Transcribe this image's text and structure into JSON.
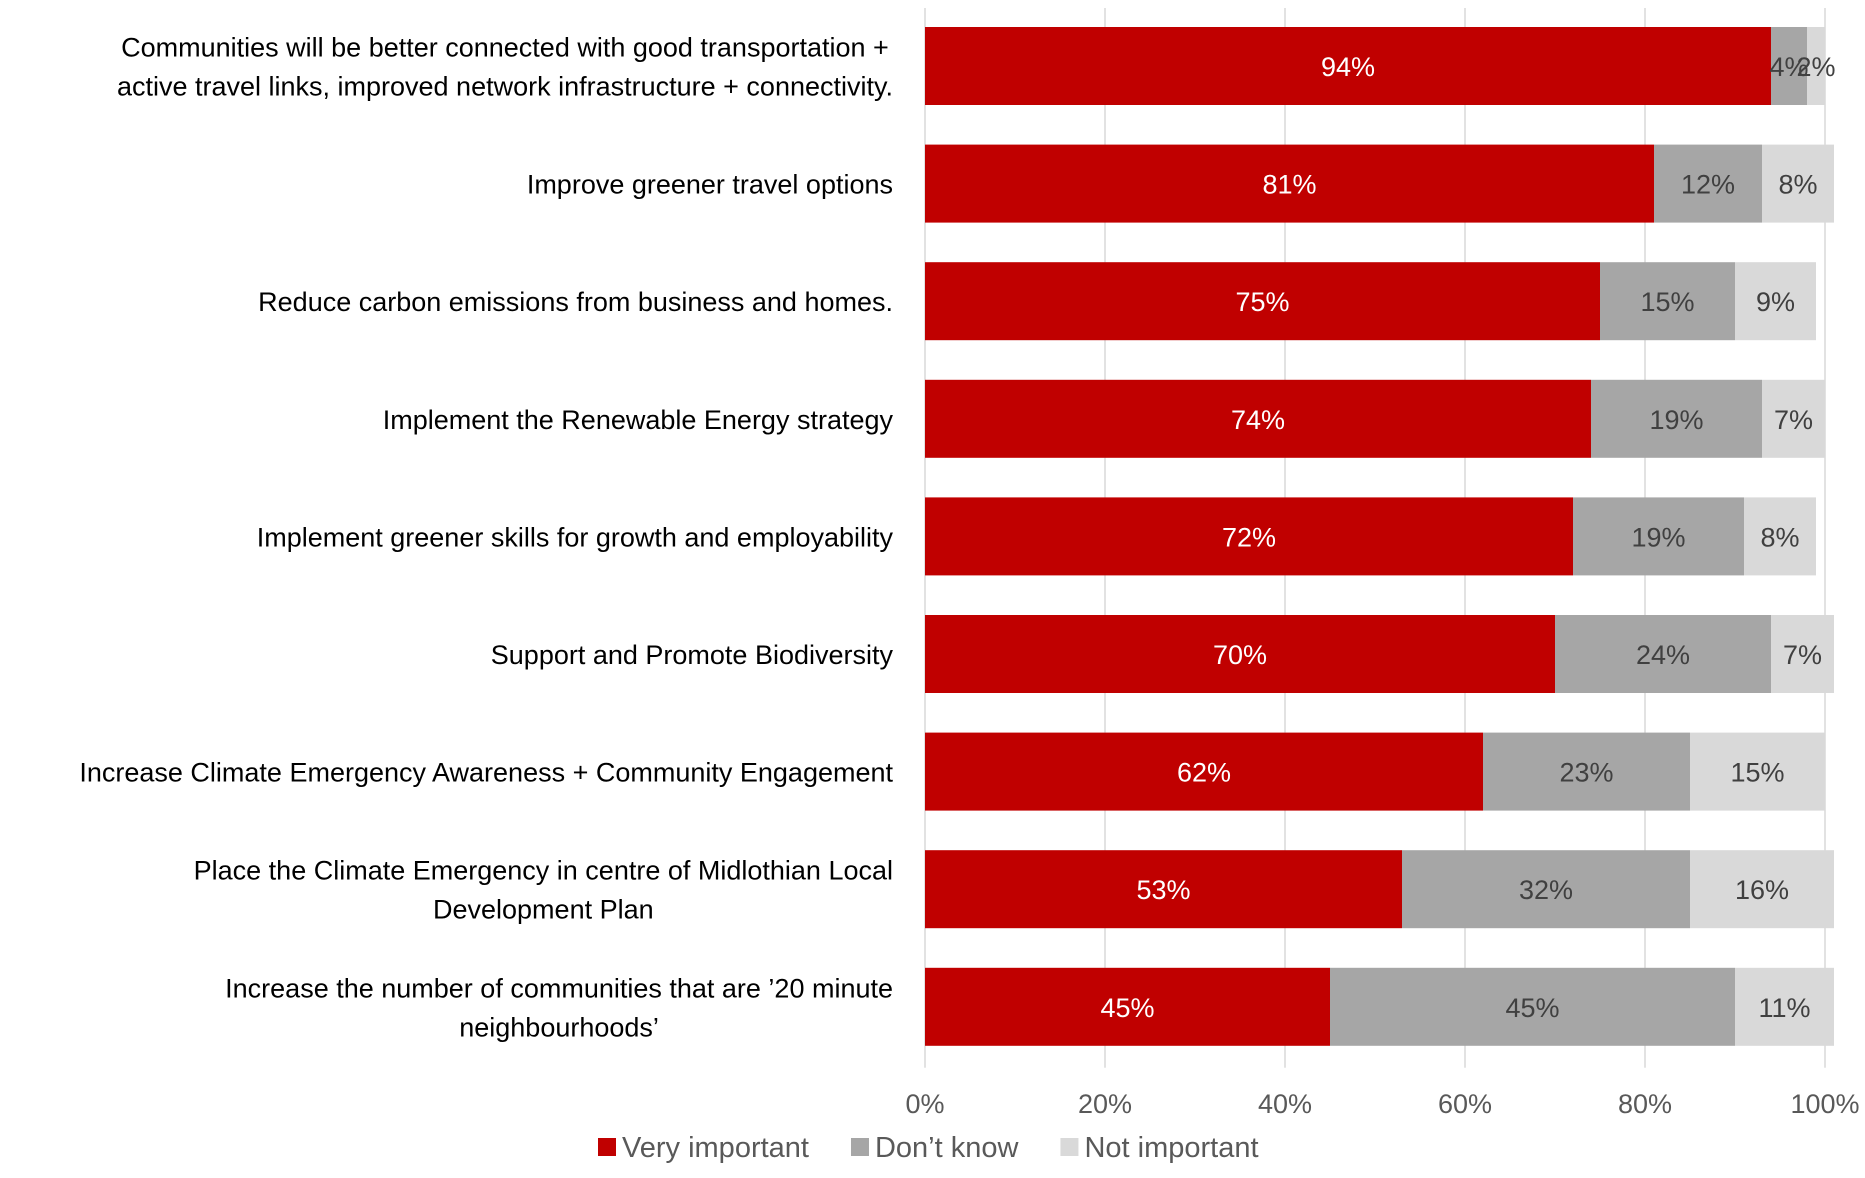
{
  "chart_data": {
    "type": "bar",
    "orientation": "horizontal",
    "stacked": true,
    "categories": [
      [
        "Communities will be better connected with good transportation +",
        "active travel links, improved network infrastructure + connectivity."
      ],
      [
        "Improve greener travel options"
      ],
      [
        "Reduce carbon emissions from business and homes."
      ],
      [
        "Implement the Renewable Energy strategy"
      ],
      [
        "Implement greener skills for growth and employability"
      ],
      [
        "Support and Promote Biodiversity"
      ],
      [
        "Increase Climate Emergency Awareness + Community Engagement"
      ],
      [
        "Place the Climate Emergency in  centre of Midlothian Local",
        "Development Plan"
      ],
      [
        "Increase the number of communities that are ’20 minute",
        "neighbourhoods’"
      ]
    ],
    "series": [
      {
        "name": "Very important",
        "color": "#C00000",
        "label_color": "#FFFFFF",
        "values": [
          94,
          81,
          75,
          74,
          72,
          70,
          62,
          53,
          45
        ],
        "labels": [
          "94%",
          "81%",
          "75%",
          "74%",
          "72%",
          "70%",
          "62%",
          "53%",
          "45%"
        ]
      },
      {
        "name": "Don’t know",
        "color": "#A6A6A6",
        "label_color": "#404040",
        "values": [
          4,
          12,
          15,
          19,
          19,
          24,
          23,
          32,
          45
        ],
        "labels": [
          "4%",
          "12%",
          "15%",
          "19%",
          "19%",
          "24%",
          "23%",
          "32%",
          "45%"
        ]
      },
      {
        "name": "Not important",
        "color": "#D9D9D9",
        "label_color": "#404040",
        "values": [
          2,
          8,
          9,
          7,
          8,
          7,
          15,
          16,
          11
        ],
        "labels": [
          "2%",
          "8%",
          "9%",
          "7%",
          "8%",
          "7%",
          "15%",
          "16%",
          "11%"
        ]
      }
    ],
    "xlim": [
      0,
      100
    ],
    "x_ticks": [
      0,
      20,
      40,
      60,
      80,
      100
    ],
    "x_tick_labels": [
      "0%",
      "20%",
      "40%",
      "60%",
      "80%",
      "100%"
    ],
    "grid": true,
    "legend_position": "bottom"
  }
}
